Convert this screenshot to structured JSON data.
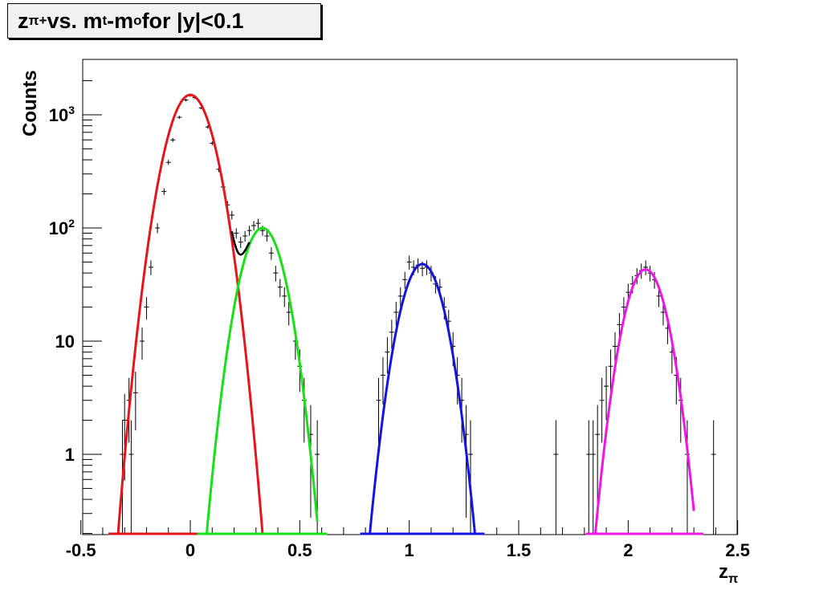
{
  "title": {
    "main": "z",
    "sub1": "π+",
    "mid1": " vs. m",
    "sub2": "t",
    "mid2": "-m",
    "sub3": "o",
    "tail": " for |y|<0.1"
  },
  "chart_data": {
    "type": "line",
    "xlabel": "z",
    "xlabel_sub": "π",
    "ylabel": "Counts",
    "xlim": [
      -0.5,
      2.5
    ],
    "ylim": [
      0.2,
      2800
    ],
    "log_y": true,
    "grid": false,
    "x_ticks": [
      "-0.5",
      "0",
      "0.5",
      "1",
      "1.5",
      "2",
      "2.5"
    ],
    "y_ticks": [
      {
        "value": 1,
        "base": "1",
        "exp": ""
      },
      {
        "value": 10,
        "base": "10",
        "exp": ""
      },
      {
        "value": 100,
        "base": "10",
        "exp": "2"
      },
      {
        "value": 1000,
        "base": "10",
        "exp": "3"
      }
    ],
    "series": [
      {
        "color": "#e8141b",
        "peak_x": 0.0,
        "peak_y": 1500,
        "x_range": [
          -0.33,
          0.33
        ]
      },
      {
        "color": "#16e016",
        "peak_x": 0.33,
        "peak_y": 100,
        "x_range": [
          0.075,
          0.58
        ]
      },
      {
        "color": "#1414e0",
        "peak_x": 1.06,
        "peak_y": 48,
        "x_range": [
          0.82,
          1.3
        ]
      },
      {
        "color": "#f014e8",
        "peak_x": 2.08,
        "peak_y": 43,
        "x_range": [
          1.85,
          2.3
        ]
      }
    ],
    "sum_curve": {
      "color": "#000000",
      "x_range": [
        0.19,
        0.27
      ],
      "min_x": 0.22,
      "min_y": 60
    },
    "points": [
      {
        "x": -0.31,
        "y": 1.0
      },
      {
        "x": -0.3,
        "y": 2.0
      },
      {
        "x": -0.28,
        "y": 3.0
      },
      {
        "x": -0.27,
        "y": 1.0
      },
      {
        "x": -0.25,
        "y": 3.5
      },
      {
        "x": -0.22,
        "y": 10
      },
      {
        "x": -0.2,
        "y": 20
      },
      {
        "x": -0.18,
        "y": 45
      },
      {
        "x": -0.15,
        "y": 100
      },
      {
        "x": -0.12,
        "y": 210
      },
      {
        "x": -0.1,
        "y": 380
      },
      {
        "x": -0.08,
        "y": 600
      },
      {
        "x": -0.05,
        "y": 950
      },
      {
        "x": -0.02,
        "y": 1350
      },
      {
        "x": 0.0,
        "y": 1480
      },
      {
        "x": 0.02,
        "y": 1420
      },
      {
        "x": 0.05,
        "y": 1150
      },
      {
        "x": 0.08,
        "y": 780
      },
      {
        "x": 0.1,
        "y": 560
      },
      {
        "x": 0.13,
        "y": 330
      },
      {
        "x": 0.15,
        "y": 230
      },
      {
        "x": 0.17,
        "y": 160
      },
      {
        "x": 0.19,
        "y": 130
      },
      {
        "x": 0.21,
        "y": 90
      },
      {
        "x": 0.23,
        "y": 75
      },
      {
        "x": 0.25,
        "y": 85
      },
      {
        "x": 0.27,
        "y": 95
      },
      {
        "x": 0.29,
        "y": 105
      },
      {
        "x": 0.31,
        "y": 110
      },
      {
        "x": 0.33,
        "y": 95
      },
      {
        "x": 0.35,
        "y": 85
      },
      {
        "x": 0.37,
        "y": 60
      },
      {
        "x": 0.39,
        "y": 40
      },
      {
        "x": 0.41,
        "y": 30
      },
      {
        "x": 0.43,
        "y": 25
      },
      {
        "x": 0.45,
        "y": 18
      },
      {
        "x": 0.48,
        "y": 10
      },
      {
        "x": 0.5,
        "y": 6
      },
      {
        "x": 0.52,
        "y": 3
      },
      {
        "x": 0.55,
        "y": 1.5
      },
      {
        "x": 0.58,
        "y": 1.0
      },
      {
        "x": 0.86,
        "y": 3
      },
      {
        "x": 0.88,
        "y": 5
      },
      {
        "x": 0.9,
        "y": 8
      },
      {
        "x": 0.92,
        "y": 12
      },
      {
        "x": 0.94,
        "y": 18
      },
      {
        "x": 0.96,
        "y": 25
      },
      {
        "x": 0.98,
        "y": 35
      },
      {
        "x": 1.0,
        "y": 50
      },
      {
        "x": 1.02,
        "y": 45
      },
      {
        "x": 1.04,
        "y": 47
      },
      {
        "x": 1.06,
        "y": 44
      },
      {
        "x": 1.08,
        "y": 45
      },
      {
        "x": 1.1,
        "y": 40
      },
      {
        "x": 1.12,
        "y": 32
      },
      {
        "x": 1.14,
        "y": 30
      },
      {
        "x": 1.16,
        "y": 20
      },
      {
        "x": 1.18,
        "y": 15
      },
      {
        "x": 1.2,
        "y": 9
      },
      {
        "x": 1.22,
        "y": 5
      },
      {
        "x": 1.24,
        "y": 3
      },
      {
        "x": 1.26,
        "y": 1.5
      },
      {
        "x": 1.28,
        "y": 1.0
      },
      {
        "x": 1.67,
        "y": 1.0
      },
      {
        "x": 1.82,
        "y": 1.0
      },
      {
        "x": 1.84,
        "y": 1.0
      },
      {
        "x": 1.86,
        "y": 1.5
      },
      {
        "x": 1.88,
        "y": 3
      },
      {
        "x": 1.9,
        "y": 4
      },
      {
        "x": 1.92,
        "y": 6
      },
      {
        "x": 1.94,
        "y": 9
      },
      {
        "x": 1.96,
        "y": 14
      },
      {
        "x": 1.98,
        "y": 20
      },
      {
        "x": 2.0,
        "y": 27
      },
      {
        "x": 2.02,
        "y": 32
      },
      {
        "x": 2.04,
        "y": 38
      },
      {
        "x": 2.06,
        "y": 42
      },
      {
        "x": 2.08,
        "y": 45
      },
      {
        "x": 2.1,
        "y": 40
      },
      {
        "x": 2.12,
        "y": 35
      },
      {
        "x": 2.14,
        "y": 25
      },
      {
        "x": 2.16,
        "y": 18
      },
      {
        "x": 2.18,
        "y": 13
      },
      {
        "x": 2.2,
        "y": 8
      },
      {
        "x": 2.22,
        "y": 5
      },
      {
        "x": 2.24,
        "y": 3
      },
      {
        "x": 2.27,
        "y": 1.0
      },
      {
        "x": 2.39,
        "y": 1.0
      }
    ]
  }
}
